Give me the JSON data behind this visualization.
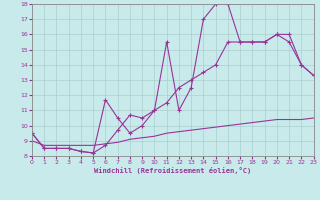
{
  "xlabel": "Windchill (Refroidissement éolien,°C)",
  "bg_color": "#c8eaea",
  "line_color": "#993399",
  "x": [
    0,
    1,
    2,
    3,
    4,
    5,
    6,
    7,
    8,
    9,
    10,
    11,
    12,
    13,
    14,
    15,
    16,
    17,
    18,
    19,
    20,
    21,
    22,
    23
  ],
  "y_main": [
    9.5,
    8.5,
    8.5,
    8.5,
    8.3,
    8.2,
    11.7,
    10.5,
    9.5,
    10.0,
    11.0,
    15.5,
    11.0,
    12.5,
    17.0,
    18.0,
    18.0,
    15.5,
    15.5,
    15.5,
    16.0,
    16.0,
    14.0,
    13.3
  ],
  "y_line2": [
    9.5,
    8.5,
    8.5,
    8.5,
    8.3,
    8.2,
    8.7,
    9.7,
    10.7,
    10.5,
    11.0,
    11.5,
    12.5,
    13.0,
    13.5,
    14.0,
    15.5,
    15.5,
    15.5,
    15.5,
    16.0,
    15.5,
    14.0,
    13.3
  ],
  "y_line3": [
    9.0,
    8.7,
    8.7,
    8.7,
    8.7,
    8.7,
    8.8,
    8.9,
    9.1,
    9.2,
    9.3,
    9.5,
    9.6,
    9.7,
    9.8,
    9.9,
    10.0,
    10.1,
    10.2,
    10.3,
    10.4,
    10.4,
    10.4,
    10.5
  ],
  "xlim": [
    0,
    23
  ],
  "ylim": [
    8,
    18
  ],
  "yticks": [
    8,
    9,
    10,
    11,
    12,
    13,
    14,
    15,
    16,
    17,
    18
  ],
  "xticks": [
    0,
    1,
    2,
    3,
    4,
    5,
    6,
    7,
    8,
    9,
    10,
    11,
    12,
    13,
    14,
    15,
    16,
    17,
    18,
    19,
    20,
    21,
    22,
    23
  ]
}
